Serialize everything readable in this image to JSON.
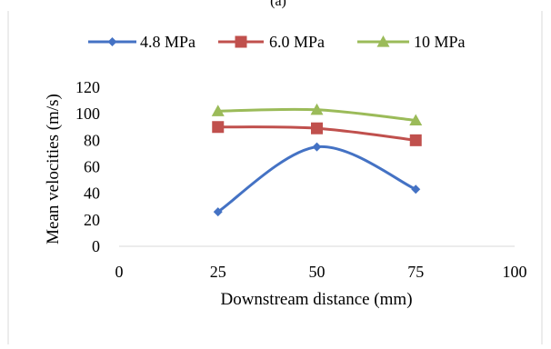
{
  "top_label": "(a)",
  "chart_data": {
    "type": "line",
    "xlabel": "Downstream distance (mm)",
    "ylabel": "Mean velocities (m/s)",
    "xlim": [
      0,
      100
    ],
    "ylim": [
      0,
      120
    ],
    "x_ticks": [
      "0",
      "25",
      "50",
      "75",
      "100"
    ],
    "y_ticks": [
      "0",
      "20",
      "40",
      "60",
      "80",
      "100",
      "120"
    ],
    "grid": false,
    "legend_position": "top",
    "series": [
      {
        "name": "4.8 MPa",
        "x": [
          25,
          50,
          75
        ],
        "values": [
          26,
          75,
          43
        ],
        "color": "#4472C4",
        "marker": "diamond"
      },
      {
        "name": "6.0 MPa",
        "x": [
          25,
          50,
          75
        ],
        "values": [
          90,
          89,
          80
        ],
        "color": "#C0504D",
        "marker": "square"
      },
      {
        "name": "10 MPa",
        "x": [
          25,
          50,
          75
        ],
        "values": [
          102,
          103,
          95
        ],
        "color": "#9BBB59",
        "marker": "triangle"
      }
    ]
  }
}
